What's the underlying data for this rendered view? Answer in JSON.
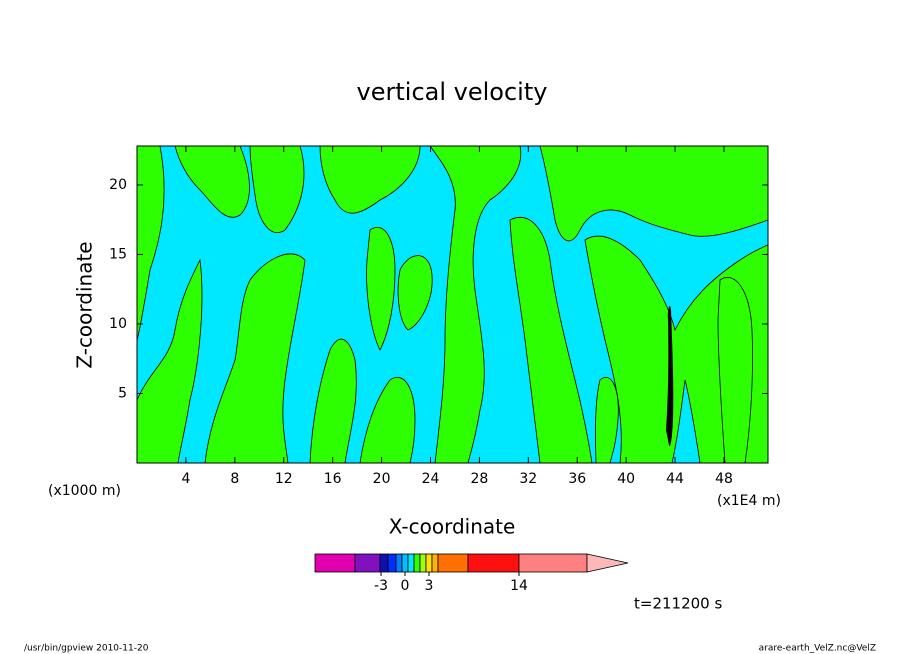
{
  "chart_data": {
    "type": "contour",
    "title": "vertical velocity",
    "x_label": "X-coordinate",
    "y_label": "Z-coordinate",
    "x_unit": "(x1E4 m)",
    "y_unit": "(x1000 m)",
    "xlim": [
      0,
      51.6
    ],
    "xticks": [
      4,
      8,
      12,
      16,
      20,
      24,
      28,
      32,
      36,
      40,
      44,
      48
    ],
    "ylim": [
      0,
      22.8
    ],
    "yticks": [
      5,
      10,
      15,
      20
    ],
    "fill_colors": [
      "#00e8ff",
      "#2eff00"
    ],
    "colorbar": {
      "colors": [
        "#e000b0",
        "#8010c0",
        "#1010b0",
        "#0030ff",
        "#0080ff",
        "#00c0ff",
        "#00e8ff",
        "#30ff00",
        "#a0ff00",
        "#ffe000",
        "#ffb000",
        "#ff7000",
        "#ff1010",
        "#ff8080",
        "#ffb8b8"
      ],
      "ticks": [
        -3,
        0,
        3,
        14
      ]
    },
    "time_label": "t=211200 s",
    "footer_left": "/usr/bin/gpview   2010-11-20",
    "footer_right": "arare-earth_VelZ.nc@VelZ"
  }
}
